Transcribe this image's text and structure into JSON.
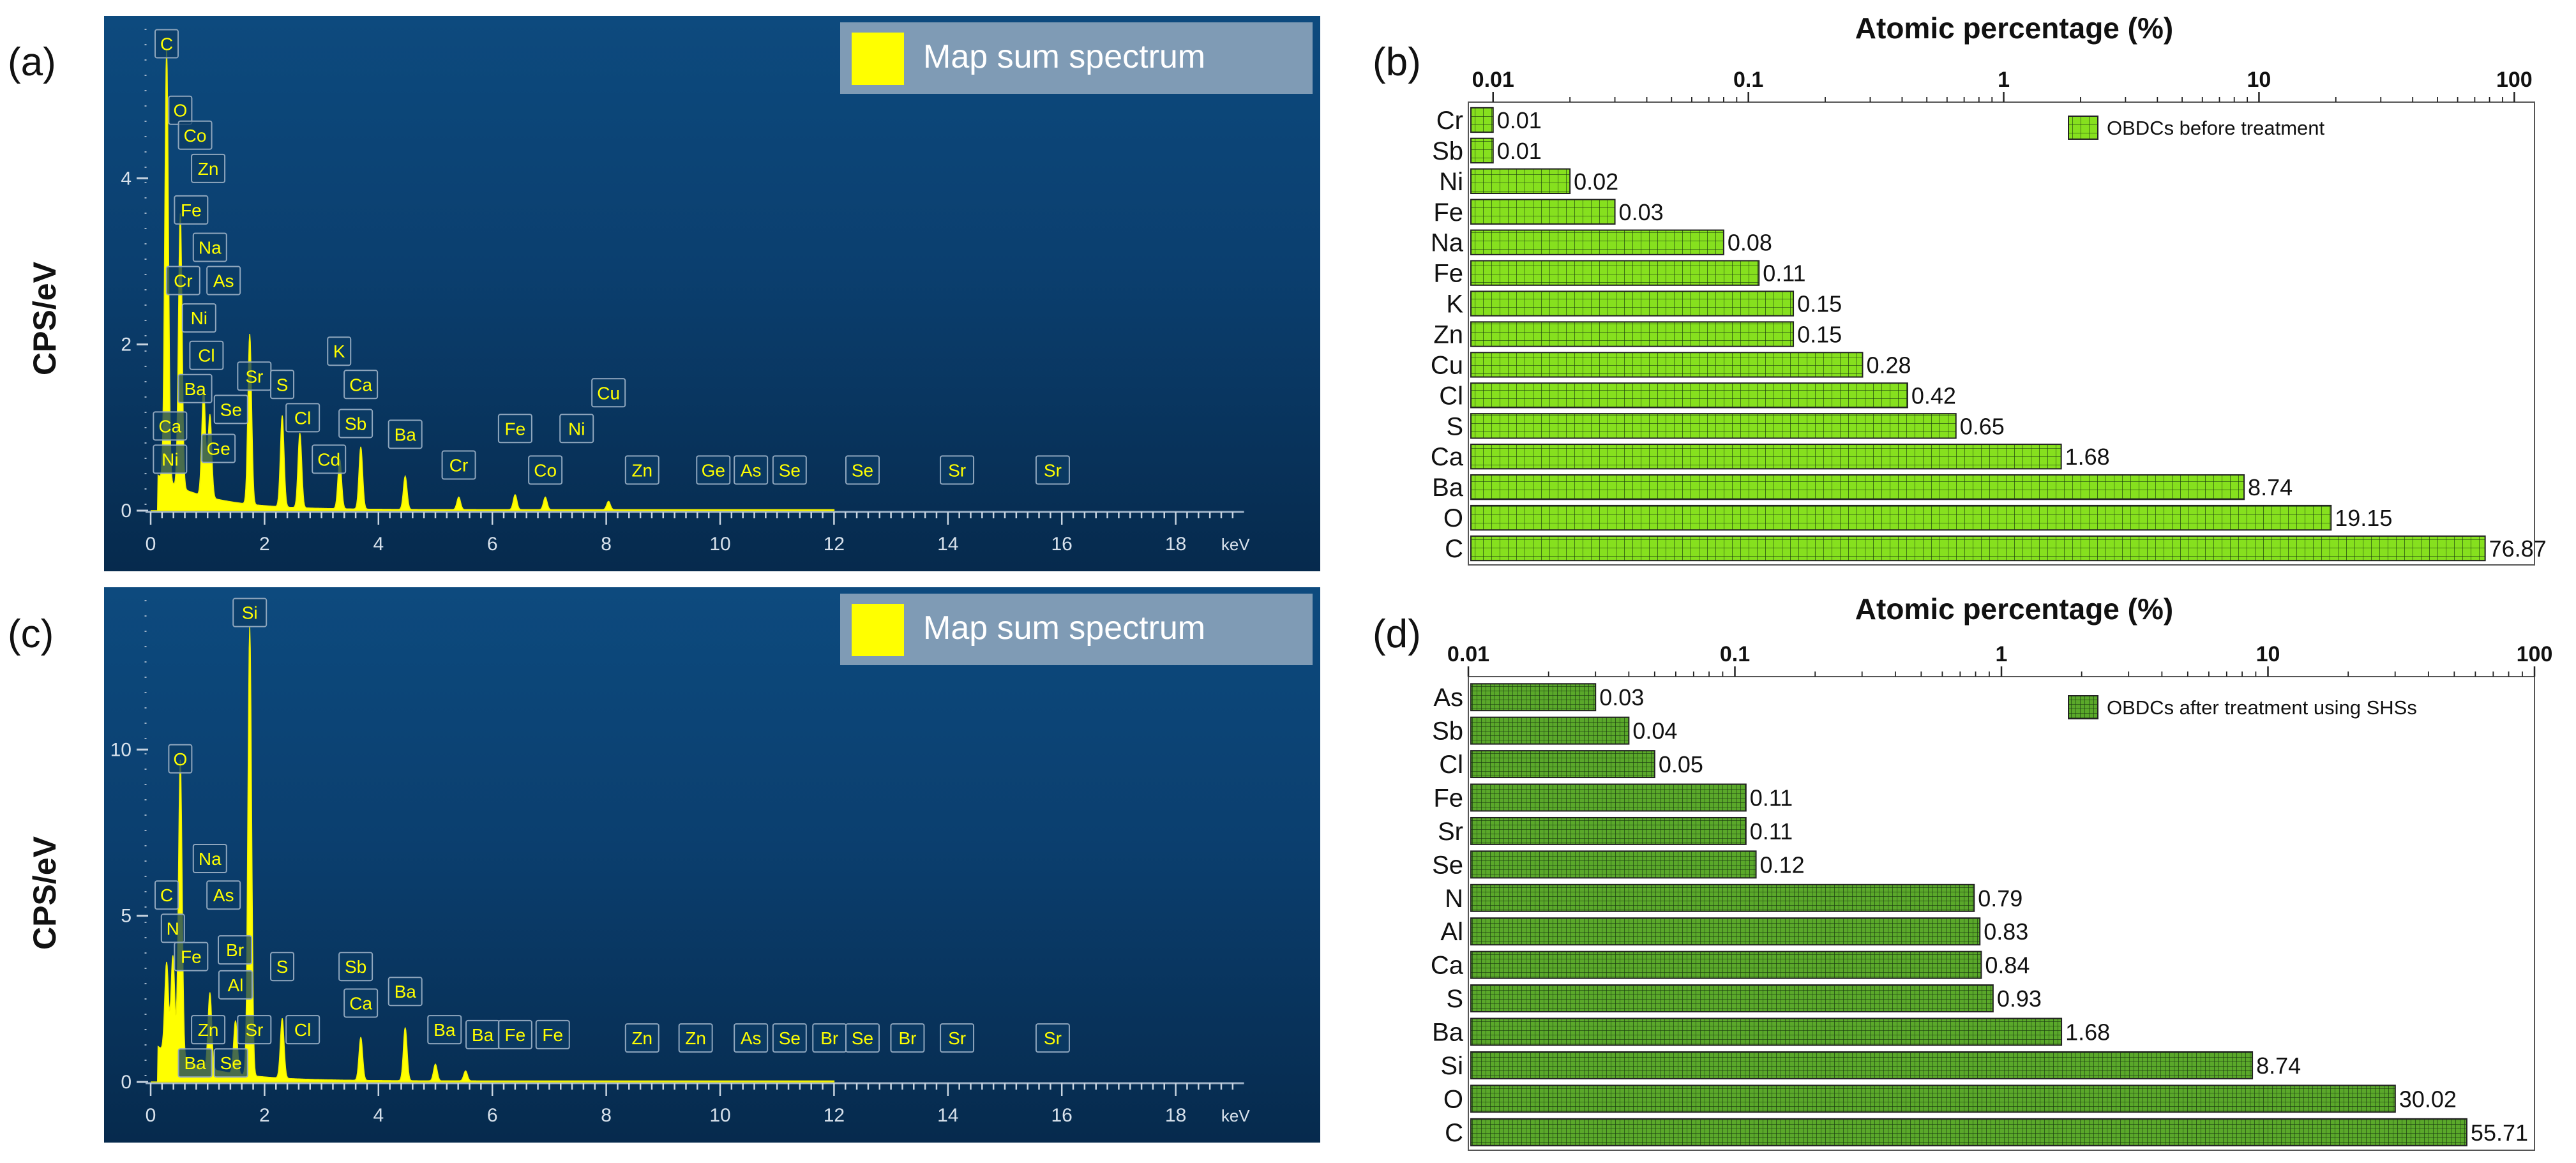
{
  "panels": {
    "a": {
      "letter": "(a)",
      "ylabel": "CPS/eV"
    },
    "b": {
      "letter": "(b)"
    },
    "c": {
      "letter": "(c)",
      "ylabel": "CPS/eV"
    },
    "d": {
      "letter": "(d)"
    }
  },
  "chart_data": [
    {
      "id": "a",
      "type": "line",
      "title": "",
      "legend": "Map sum spectrum",
      "xlabel": "keV",
      "ylabel": "CPS/eV",
      "xlim": [
        0,
        20
      ],
      "ylim": [
        0,
        5.8
      ],
      "x_ticks": [
        "0",
        "2",
        "4",
        "6",
        "8",
        "10",
        "12",
        "14",
        "16",
        "18"
      ],
      "y_ticks": [
        {
          "v": 0,
          "l": "0"
        },
        {
          "v": 2,
          "l": "2"
        },
        {
          "v": 4,
          "l": "4"
        }
      ],
      "peaks": [
        [
          0.28,
          5.2
        ],
        [
          0.52,
          3.3
        ],
        [
          0.93,
          1.3
        ],
        [
          1.04,
          1.0
        ],
        [
          1.74,
          2.05
        ],
        [
          2.31,
          1.1
        ],
        [
          2.62,
          0.9
        ],
        [
          3.32,
          0.6
        ],
        [
          3.69,
          0.75
        ],
        [
          4.47,
          0.4
        ],
        [
          5.41,
          0.15
        ],
        [
          6.4,
          0.18
        ],
        [
          6.93,
          0.15
        ],
        [
          8.04,
          0.1
        ]
      ],
      "labels": [
        {
          "t": "C",
          "x": 0.28,
          "y": 5.45
        },
        {
          "t": "O",
          "x": 0.52,
          "y": 4.65
        },
        {
          "t": "Co",
          "x": 0.78,
          "y": 4.35
        },
        {
          "t": "Zn",
          "x": 1.01,
          "y": 3.95
        },
        {
          "t": "Fe",
          "x": 0.71,
          "y": 3.45
        },
        {
          "t": "Na",
          "x": 1.04,
          "y": 3.0
        },
        {
          "t": "Cr",
          "x": 0.57,
          "y": 2.6
        },
        {
          "t": "As",
          "x": 1.28,
          "y": 2.6
        },
        {
          "t": "Ni",
          "x": 0.85,
          "y": 2.15
        },
        {
          "t": "Cl",
          "x": 0.98,
          "y": 1.7
        },
        {
          "t": "Ba",
          "x": 0.78,
          "y": 1.3
        },
        {
          "t": "Sr",
          "x": 1.82,
          "y": 1.45
        },
        {
          "t": "S",
          "x": 2.31,
          "y": 1.35
        },
        {
          "t": "K",
          "x": 3.31,
          "y": 1.75
        },
        {
          "t": "Ca",
          "x": 3.69,
          "y": 1.35
        },
        {
          "t": "Se",
          "x": 1.41,
          "y": 1.05
        },
        {
          "t": "Ca",
          "x": 0.34,
          "y": 0.85
        },
        {
          "t": "Cl",
          "x": 2.67,
          "y": 0.95
        },
        {
          "t": "Sb",
          "x": 3.6,
          "y": 0.88
        },
        {
          "t": "Ge",
          "x": 1.19,
          "y": 0.58
        },
        {
          "t": "Ni",
          "x": 0.34,
          "y": 0.45
        },
        {
          "t": "Cd",
          "x": 3.13,
          "y": 0.45
        },
        {
          "t": "Ba",
          "x": 4.47,
          "y": 0.75
        },
        {
          "t": "Cr",
          "x": 5.41,
          "y": 0.38
        },
        {
          "t": "Fe",
          "x": 6.4,
          "y": 0.82
        },
        {
          "t": "Ni",
          "x": 7.48,
          "y": 0.82
        },
        {
          "t": "Co",
          "x": 6.93,
          "y": 0.32
        },
        {
          "t": "Cu",
          "x": 8.04,
          "y": 1.25
        },
        {
          "t": "Zn",
          "x": 8.63,
          "y": 0.32
        },
        {
          "t": "Ge",
          "x": 9.88,
          "y": 0.32
        },
        {
          "t": "As",
          "x": 10.54,
          "y": 0.32
        },
        {
          "t": "Se",
          "x": 11.22,
          "y": 0.32
        },
        {
          "t": "Se",
          "x": 12.5,
          "y": 0.32
        },
        {
          "t": "Sr",
          "x": 14.16,
          "y": 0.32
        },
        {
          "t": "Sr",
          "x": 15.84,
          "y": 0.32
        }
      ]
    },
    {
      "id": "b",
      "type": "bar",
      "orientation": "horizontal",
      "title": "Atomic percentage (%)",
      "legend": "OBDCs before treatment",
      "color": "#86e01e",
      "xscale": "log",
      "xlim": [
        0.008,
        120
      ],
      "x_ticks": [
        {
          "v": 0.01,
          "l": "0.01"
        },
        {
          "v": 0.1,
          "l": "0.1"
        },
        {
          "v": 1,
          "l": "1"
        },
        {
          "v": 10,
          "l": "10"
        },
        {
          "v": 100,
          "l": "100"
        }
      ],
      "categories": [
        "Cr",
        "Sb",
        "Ni",
        "Fe",
        "Na",
        "Fe",
        "K",
        "Zn",
        "Cu",
        "Cl",
        "S",
        "Ca",
        "Ba",
        "O",
        "C"
      ],
      "values": [
        0.01,
        0.01,
        0.02,
        0.03,
        0.08,
        0.11,
        0.15,
        0.15,
        0.28,
        0.42,
        0.65,
        1.68,
        8.74,
        19.15,
        76.87
      ],
      "value_labels": [
        "0.01",
        "0.01",
        "0.02",
        "0.03",
        "0.08",
        "0.11",
        "0.15",
        "0.15",
        "0.28",
        "0.42",
        "0.65",
        "1.68",
        "8.74",
        "19.15",
        "76.87"
      ]
    },
    {
      "id": "c",
      "type": "line",
      "title": "",
      "legend": "Map sum spectrum",
      "xlabel": "keV",
      "ylabel": "CPS/eV",
      "xlim": [
        0,
        20
      ],
      "ylim": [
        0,
        14.5
      ],
      "x_ticks": [
        "0",
        "2",
        "4",
        "6",
        "8",
        "10",
        "12",
        "14",
        "16",
        "18"
      ],
      "y_ticks": [
        {
          "v": 0,
          "l": "0"
        },
        {
          "v": 5,
          "l": "5"
        },
        {
          "v": 10,
          "l": "10"
        }
      ],
      "peaks": [
        [
          0.28,
          2.7
        ],
        [
          0.39,
          3.0
        ],
        [
          0.52,
          9.0
        ],
        [
          1.04,
          2.3
        ],
        [
          1.49,
          1.6
        ],
        [
          1.74,
          13.5
        ],
        [
          2.31,
          1.8
        ],
        [
          3.69,
          1.3
        ],
        [
          4.47,
          1.6
        ],
        [
          5.0,
          0.5
        ],
        [
          5.53,
          0.3
        ]
      ],
      "labels": [
        {
          "t": "Si",
          "x": 1.74,
          "y": 13.7
        },
        {
          "t": "O",
          "x": 0.52,
          "y": 9.3
        },
        {
          "t": "Na",
          "x": 1.04,
          "y": 6.3
        },
        {
          "t": "As",
          "x": 1.28,
          "y": 5.2
        },
        {
          "t": "C",
          "x": 0.28,
          "y": 5.2
        },
        {
          "t": "N",
          "x": 0.39,
          "y": 4.2
        },
        {
          "t": "Fe",
          "x": 0.71,
          "y": 3.35
        },
        {
          "t": "Br",
          "x": 1.48,
          "y": 3.55
        },
        {
          "t": "Al",
          "x": 1.49,
          "y": 2.5
        },
        {
          "t": "S",
          "x": 2.31,
          "y": 3.05
        },
        {
          "t": "Sb",
          "x": 3.6,
          "y": 3.05
        },
        {
          "t": "Ca",
          "x": 3.69,
          "y": 1.95
        },
        {
          "t": "Ba",
          "x": 4.47,
          "y": 2.3
        },
        {
          "t": "Zn",
          "x": 1.01,
          "y": 1.15
        },
        {
          "t": "Sr",
          "x": 1.82,
          "y": 1.15
        },
        {
          "t": "Cl",
          "x": 2.67,
          "y": 1.15
        },
        {
          "t": "Ba",
          "x": 0.78,
          "y": 0.15
        },
        {
          "t": "Se",
          "x": 1.41,
          "y": 0.15
        },
        {
          "t": "Ba",
          "x": 5.16,
          "y": 1.15
        },
        {
          "t": "Ba",
          "x": 5.83,
          "y": 1.0
        },
        {
          "t": "Fe",
          "x": 6.4,
          "y": 1.0
        },
        {
          "t": "Fe",
          "x": 7.06,
          "y": 1.0
        },
        {
          "t": "Zn",
          "x": 8.63,
          "y": 0.9
        },
        {
          "t": "Zn",
          "x": 9.57,
          "y": 0.9
        },
        {
          "t": "As",
          "x": 10.54,
          "y": 0.9
        },
        {
          "t": "Se",
          "x": 11.22,
          "y": 0.9
        },
        {
          "t": "Br",
          "x": 11.92,
          "y": 0.9
        },
        {
          "t": "Se",
          "x": 12.5,
          "y": 0.9
        },
        {
          "t": "Br",
          "x": 13.29,
          "y": 0.9
        },
        {
          "t": "Sr",
          "x": 14.16,
          "y": 0.9
        },
        {
          "t": "Sr",
          "x": 15.84,
          "y": 0.9
        }
      ]
    },
    {
      "id": "d",
      "type": "bar",
      "orientation": "horizontal",
      "title": "Atomic percentage (%)",
      "legend": "OBDCs after treatment using SHSs",
      "color": "#5aa82a",
      "xscale": "log",
      "xlim": [
        0.01,
        100
      ],
      "x_ticks": [
        {
          "v": 0.01,
          "l": "0.01"
        },
        {
          "v": 0.1,
          "l": "0.1"
        },
        {
          "v": 1,
          "l": "1"
        },
        {
          "v": 10,
          "l": "10"
        },
        {
          "v": 100,
          "l": "100"
        }
      ],
      "categories": [
        "As",
        "Sb",
        "Cl",
        "Fe",
        "Sr",
        "Se",
        "N",
        "Al",
        "Ca",
        "S",
        "Ba",
        "Si",
        "O",
        "C"
      ],
      "values": [
        0.03,
        0.04,
        0.05,
        0.11,
        0.11,
        0.12,
        0.79,
        0.83,
        0.84,
        0.93,
        1.68,
        8.74,
        30.02,
        55.71
      ],
      "value_labels": [
        "0.03",
        "0.04",
        "0.05",
        "0.11",
        "0.11",
        "0.12",
        "0.79",
        "0.83",
        "0.84",
        "0.93",
        "1.68",
        "8.74",
        "30.02",
        "55.71"
      ]
    }
  ]
}
